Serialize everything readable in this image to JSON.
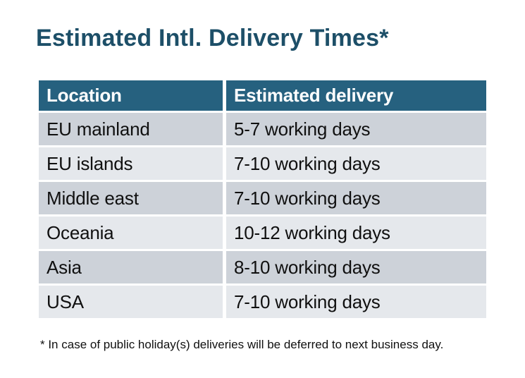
{
  "slide": {
    "title": "Estimated Intl. Delivery Times*",
    "footnote": "* In case of public holiday(s) deliveries will be deferred to next business day."
  },
  "table": {
    "columns": [
      {
        "label": "Location"
      },
      {
        "label": "Estimated delivery"
      }
    ],
    "rows": [
      {
        "location": "EU mainland",
        "delivery": "5-7 working days"
      },
      {
        "location": "EU islands",
        "delivery": "7-10 working days"
      },
      {
        "location": "Middle east",
        "delivery": "7-10 working days"
      },
      {
        "location": "Oceania",
        "delivery": "10-12 working days"
      },
      {
        "location": "Asia",
        "delivery": "8-10 working days"
      },
      {
        "location": "USA",
        "delivery": "7-10 working days"
      }
    ]
  },
  "colors": {
    "background": "#FFFFFF",
    "title": "#1D4F68",
    "header_bg": "#26617F",
    "header_text": "#FFFFFF",
    "row_odd_bg": "#CDD2D9",
    "row_even_bg": "#E5E8EC",
    "cell_text": "#101010"
  }
}
